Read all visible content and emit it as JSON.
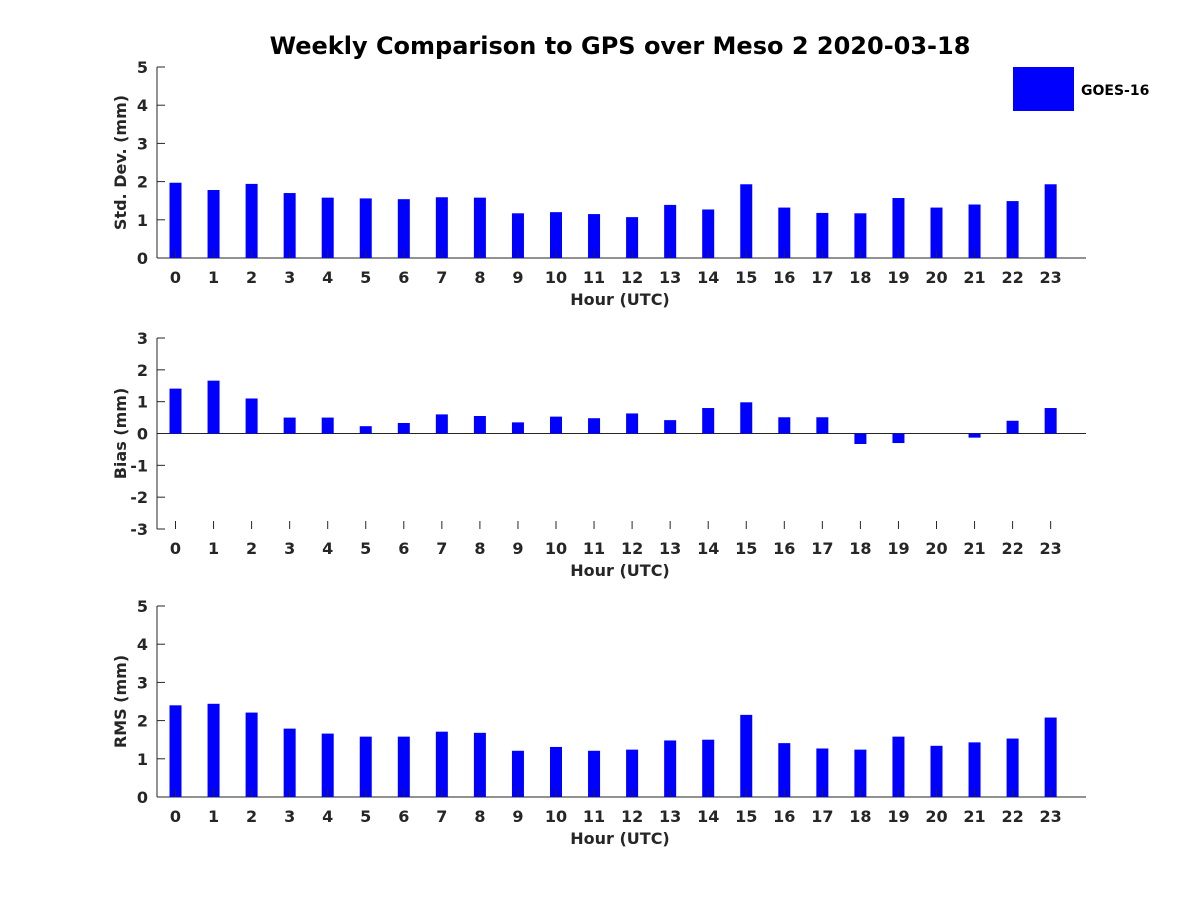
{
  "title": "Weekly Comparison to GPS over Meso 2 2020-03-18",
  "legend": {
    "label": "GOES-16",
    "color": "#0000ff",
    "location": "top-right"
  },
  "chart_data": [
    {
      "type": "bar",
      "xlabel": "Hour (UTC)",
      "ylabel": "Std. Dev. (mm)",
      "ylim": [
        0,
        5
      ],
      "yticks": [
        0,
        1,
        2,
        3,
        4,
        5
      ],
      "categories": [
        "0",
        "1",
        "2",
        "3",
        "4",
        "5",
        "6",
        "7",
        "8",
        "9",
        "10",
        "11",
        "12",
        "13",
        "14",
        "15",
        "16",
        "17",
        "18",
        "19",
        "20",
        "21",
        "22",
        "23"
      ],
      "series": [
        {
          "name": "GOES-16",
          "values": [
            1.97,
            1.78,
            1.94,
            1.7,
            1.58,
            1.56,
            1.54,
            1.59,
            1.58,
            1.17,
            1.2,
            1.15,
            1.07,
            1.39,
            1.27,
            1.93,
            1.32,
            1.18,
            1.17,
            1.57,
            1.32,
            1.4,
            1.49,
            1.93
          ]
        }
      ]
    },
    {
      "type": "bar",
      "xlabel": "Hour (UTC)",
      "ylabel": "Bias (mm)",
      "ylim": [
        -3,
        3
      ],
      "yticks": [
        -3,
        -2,
        -1,
        0,
        1,
        2,
        3
      ],
      "categories": [
        "0",
        "1",
        "2",
        "3",
        "4",
        "5",
        "6",
        "7",
        "8",
        "9",
        "10",
        "11",
        "12",
        "13",
        "14",
        "15",
        "16",
        "17",
        "18",
        "19",
        "20",
        "21",
        "22",
        "23"
      ],
      "series": [
        {
          "name": "GOES-16",
          "values": [
            1.41,
            1.66,
            1.1,
            0.5,
            0.5,
            0.23,
            0.33,
            0.6,
            0.55,
            0.35,
            0.53,
            0.48,
            0.63,
            0.42,
            0.8,
            0.98,
            0.51,
            0.51,
            -0.33,
            -0.3,
            0.0,
            -0.13,
            0.4,
            0.8
          ]
        }
      ]
    },
    {
      "type": "bar",
      "xlabel": "Hour (UTC)",
      "ylabel": "RMS (mm)",
      "ylim": [
        0,
        5
      ],
      "yticks": [
        0,
        1,
        2,
        3,
        4,
        5
      ],
      "categories": [
        "0",
        "1",
        "2",
        "3",
        "4",
        "5",
        "6",
        "7",
        "8",
        "9",
        "10",
        "11",
        "12",
        "13",
        "14",
        "15",
        "16",
        "17",
        "18",
        "19",
        "20",
        "21",
        "22",
        "23"
      ],
      "series": [
        {
          "name": "GOES-16",
          "values": [
            2.4,
            2.44,
            2.21,
            1.79,
            1.66,
            1.58,
            1.58,
            1.71,
            1.68,
            1.21,
            1.31,
            1.21,
            1.24,
            1.48,
            1.5,
            2.15,
            1.41,
            1.27,
            1.24,
            1.58,
            1.34,
            1.43,
            1.53,
            2.08
          ]
        }
      ]
    }
  ]
}
